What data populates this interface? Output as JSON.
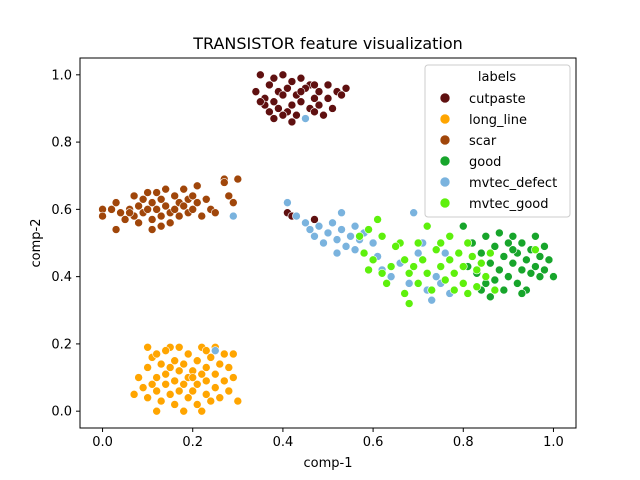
{
  "chart_data": {
    "type": "scatter",
    "title": "TRANSISTOR feature visualization",
    "xlabel": "comp-1",
    "ylabel": "comp-2",
    "xlim": [
      -0.05,
      1.05
    ],
    "ylim": [
      -0.05,
      1.05
    ],
    "xticks": [
      "0.0",
      "0.2",
      "0.4",
      "0.6",
      "0.8",
      "1.0"
    ],
    "yticks": [
      "0.0",
      "0.2",
      "0.4",
      "0.6",
      "0.8",
      "1.0"
    ],
    "grid": false,
    "legend": {
      "title": "labels",
      "placement": "top-right"
    },
    "series": [
      {
        "name": "cutpaste",
        "color": "#5f1010",
        "points": [
          [
            0.35,
            1.0
          ],
          [
            0.38,
            0.99
          ],
          [
            0.4,
            1.0
          ],
          [
            0.42,
            0.98
          ],
          [
            0.44,
            0.99
          ],
          [
            0.46,
            0.97
          ],
          [
            0.48,
            0.95
          ],
          [
            0.37,
            0.97
          ],
          [
            0.39,
            0.95
          ],
          [
            0.41,
            0.96
          ],
          [
            0.43,
            0.94
          ],
          [
            0.45,
            0.96
          ],
          [
            0.47,
            0.93
          ],
          [
            0.34,
            0.95
          ],
          [
            0.36,
            0.93
          ],
          [
            0.38,
            0.92
          ],
          [
            0.4,
            0.94
          ],
          [
            0.42,
            0.91
          ],
          [
            0.44,
            0.92
          ],
          [
            0.46,
            0.9
          ],
          [
            0.48,
            0.91
          ],
          [
            0.5,
            0.93
          ],
          [
            0.52,
            0.95
          ],
          [
            0.54,
            0.96
          ],
          [
            0.51,
            0.9
          ],
          [
            0.49,
            0.88
          ],
          [
            0.47,
            0.89
          ],
          [
            0.45,
            0.87
          ],
          [
            0.43,
            0.88
          ],
          [
            0.41,
            0.89
          ],
          [
            0.39,
            0.9
          ],
          [
            0.37,
            0.89
          ],
          [
            0.36,
            0.91
          ],
          [
            0.5,
            0.97
          ],
          [
            0.53,
            0.94
          ],
          [
            0.4,
            0.88
          ],
          [
            0.42,
            0.86
          ],
          [
            0.38,
            0.87
          ],
          [
            0.35,
            0.92
          ],
          [
            0.44,
            0.95
          ],
          [
            0.47,
            0.97
          ],
          [
            0.41,
            0.59
          ],
          [
            0.42,
            0.58
          ],
          [
            0.47,
            0.57
          ]
        ]
      },
      {
        "name": "long_line",
        "color": "#ffa500",
        "points": [
          [
            0.07,
            0.05
          ],
          [
            0.08,
            0.1
          ],
          [
            0.09,
            0.07
          ],
          [
            0.1,
            0.04
          ],
          [
            0.1,
            0.13
          ],
          [
            0.1,
            0.19
          ],
          [
            0.11,
            0.08
          ],
          [
            0.11,
            0.16
          ],
          [
            0.12,
            0.06
          ],
          [
            0.12,
            0.1
          ],
          [
            0.12,
            0.17
          ],
          [
            0.13,
            0.14
          ],
          [
            0.13,
            0.03
          ],
          [
            0.14,
            0.08
          ],
          [
            0.14,
            0.11
          ],
          [
            0.15,
            0.13
          ],
          [
            0.15,
            0.19
          ],
          [
            0.15,
            0.05
          ],
          [
            0.16,
            0.02
          ],
          [
            0.16,
            0.09
          ],
          [
            0.16,
            0.15
          ],
          [
            0.17,
            0.06
          ],
          [
            0.17,
            0.12
          ],
          [
            0.18,
            0.0
          ],
          [
            0.18,
            0.08
          ],
          [
            0.18,
            0.14
          ],
          [
            0.19,
            0.04
          ],
          [
            0.19,
            0.1
          ],
          [
            0.19,
            0.17
          ],
          [
            0.2,
            0.06
          ],
          [
            0.2,
            0.12
          ],
          [
            0.21,
            0.02
          ],
          [
            0.21,
            0.08
          ],
          [
            0.21,
            0.15
          ],
          [
            0.22,
            0.0
          ],
          [
            0.22,
            0.11
          ],
          [
            0.22,
            0.19
          ],
          [
            0.23,
            0.05
          ],
          [
            0.23,
            0.09
          ],
          [
            0.23,
            0.13
          ],
          [
            0.24,
            0.03
          ],
          [
            0.24,
            0.16
          ],
          [
            0.25,
            0.07
          ],
          [
            0.25,
            0.11
          ],
          [
            0.25,
            0.19
          ],
          [
            0.26,
            0.04
          ],
          [
            0.26,
            0.14
          ],
          [
            0.27,
            0.09
          ],
          [
            0.27,
            0.17
          ],
          [
            0.28,
            0.06
          ],
          [
            0.28,
            0.13
          ],
          [
            0.29,
            0.1
          ],
          [
            0.29,
            0.17
          ],
          [
            0.3,
            0.03
          ],
          [
            0.14,
            0.18
          ],
          [
            0.17,
            0.19
          ],
          [
            0.2,
            0.1
          ],
          [
            0.23,
            0.18
          ],
          [
            0.12,
            0.0
          ]
        ]
      },
      {
        "name": "scar",
        "color": "#a0460a",
        "points": [
          [
            0.0,
            0.6
          ],
          [
            0.0,
            0.58
          ],
          [
            0.02,
            0.6
          ],
          [
            0.03,
            0.62
          ],
          [
            0.03,
            0.54
          ],
          [
            0.04,
            0.59
          ],
          [
            0.05,
            0.57
          ],
          [
            0.06,
            0.6
          ],
          [
            0.07,
            0.64
          ],
          [
            0.07,
            0.58
          ],
          [
            0.08,
            0.61
          ],
          [
            0.08,
            0.56
          ],
          [
            0.09,
            0.63
          ],
          [
            0.09,
            0.59
          ],
          [
            0.1,
            0.65
          ],
          [
            0.1,
            0.6
          ],
          [
            0.11,
            0.62
          ],
          [
            0.11,
            0.57
          ],
          [
            0.11,
            0.54
          ],
          [
            0.12,
            0.65
          ],
          [
            0.12,
            0.6
          ],
          [
            0.13,
            0.63
          ],
          [
            0.13,
            0.58
          ],
          [
            0.14,
            0.66
          ],
          [
            0.14,
            0.61
          ],
          [
            0.15,
            0.59
          ],
          [
            0.15,
            0.56
          ],
          [
            0.16,
            0.64
          ],
          [
            0.16,
            0.6
          ],
          [
            0.17,
            0.62
          ],
          [
            0.17,
            0.58
          ],
          [
            0.18,
            0.66
          ],
          [
            0.18,
            0.61
          ],
          [
            0.19,
            0.63
          ],
          [
            0.19,
            0.59
          ],
          [
            0.2,
            0.64
          ],
          [
            0.2,
            0.6
          ],
          [
            0.21,
            0.67
          ],
          [
            0.21,
            0.62
          ],
          [
            0.22,
            0.58
          ],
          [
            0.23,
            0.63
          ],
          [
            0.24,
            0.6
          ],
          [
            0.25,
            0.59
          ],
          [
            0.27,
            0.69
          ],
          [
            0.27,
            0.68
          ],
          [
            0.28,
            0.64
          ],
          [
            0.29,
            0.62
          ],
          [
            0.3,
            0.69
          ],
          [
            0.13,
            0.55
          ],
          [
            0.06,
            0.59
          ]
        ]
      },
      {
        "name": "good",
        "color": "#17a52b",
        "points": [
          [
            0.8,
            0.55
          ],
          [
            0.82,
            0.5
          ],
          [
            0.84,
            0.47
          ],
          [
            0.85,
            0.52
          ],
          [
            0.86,
            0.44
          ],
          [
            0.87,
            0.49
          ],
          [
            0.88,
            0.42
          ],
          [
            0.88,
            0.53
          ],
          [
            0.89,
            0.46
          ],
          [
            0.9,
            0.5
          ],
          [
            0.9,
            0.4
          ],
          [
            0.91,
            0.44
          ],
          [
            0.91,
            0.52
          ],
          [
            0.92,
            0.47
          ],
          [
            0.92,
            0.38
          ],
          [
            0.93,
            0.42
          ],
          [
            0.93,
            0.5
          ],
          [
            0.94,
            0.45
          ],
          [
            0.94,
            0.36
          ],
          [
            0.95,
            0.41
          ],
          [
            0.95,
            0.48
          ],
          [
            0.96,
            0.43
          ],
          [
            0.96,
            0.52
          ],
          [
            0.97,
            0.4
          ],
          [
            0.97,
            0.46
          ],
          [
            0.98,
            0.42
          ],
          [
            0.99,
            0.45
          ],
          [
            1.0,
            0.4
          ],
          [
            0.85,
            0.38
          ],
          [
            0.86,
            0.34
          ],
          [
            0.83,
            0.41
          ],
          [
            0.84,
            0.36
          ],
          [
            0.79,
            0.47
          ],
          [
            0.81,
            0.43
          ],
          [
            0.89,
            0.36
          ],
          [
            0.87,
            0.39
          ],
          [
            0.98,
            0.49
          ],
          [
            0.93,
            0.35
          ],
          [
            0.91,
            0.48
          ]
        ]
      },
      {
        "name": "mvtec_defect",
        "color": "#7ab3de",
        "points": [
          [
            0.41,
            0.62
          ],
          [
            0.45,
            0.87
          ],
          [
            0.43,
            0.58
          ],
          [
            0.45,
            0.56
          ],
          [
            0.46,
            0.54
          ],
          [
            0.47,
            0.52
          ],
          [
            0.48,
            0.55
          ],
          [
            0.49,
            0.5
          ],
          [
            0.5,
            0.53
          ],
          [
            0.51,
            0.56
          ],
          [
            0.52,
            0.51
          ],
          [
            0.52,
            0.47
          ],
          [
            0.53,
            0.59
          ],
          [
            0.53,
            0.54
          ],
          [
            0.54,
            0.49
          ],
          [
            0.55,
            0.52
          ],
          [
            0.56,
            0.48
          ],
          [
            0.56,
            0.55
          ],
          [
            0.57,
            0.51
          ],
          [
            0.58,
            0.47
          ],
          [
            0.58,
            0.53
          ],
          [
            0.6,
            0.5
          ],
          [
            0.61,
            0.46
          ],
          [
            0.62,
            0.42
          ],
          [
            0.64,
            0.4
          ],
          [
            0.66,
            0.44
          ],
          [
            0.68,
            0.38
          ],
          [
            0.7,
            0.47
          ],
          [
            0.71,
            0.5
          ],
          [
            0.72,
            0.36
          ],
          [
            0.73,
            0.33
          ],
          [
            0.74,
            0.4
          ],
          [
            0.75,
            0.38
          ],
          [
            0.77,
            0.35
          ],
          [
            0.76,
            0.47
          ],
          [
            0.69,
            0.59
          ],
          [
            0.29,
            0.58
          ],
          [
            0.25,
            0.18
          ]
        ]
      },
      {
        "name": "mvtec_good",
        "color": "#5ef00c",
        "points": [
          [
            0.57,
            0.52
          ],
          [
            0.58,
            0.47
          ],
          [
            0.59,
            0.42
          ],
          [
            0.6,
            0.45
          ],
          [
            0.61,
            0.57
          ],
          [
            0.62,
            0.52
          ],
          [
            0.62,
            0.41
          ],
          [
            0.63,
            0.38
          ],
          [
            0.66,
            0.5
          ],
          [
            0.67,
            0.45
          ],
          [
            0.67,
            0.35
          ],
          [
            0.68,
            0.32
          ],
          [
            0.68,
            0.41
          ],
          [
            0.69,
            0.43
          ],
          [
            0.7,
            0.38
          ],
          [
            0.7,
            0.5
          ],
          [
            0.71,
            0.45
          ],
          [
            0.72,
            0.41
          ],
          [
            0.72,
            0.55
          ],
          [
            0.73,
            0.36
          ],
          [
            0.74,
            0.48
          ],
          [
            0.75,
            0.43
          ],
          [
            0.75,
            0.5
          ],
          [
            0.76,
            0.39
          ],
          [
            0.77,
            0.45
          ],
          [
            0.77,
            0.52
          ],
          [
            0.78,
            0.41
          ],
          [
            0.78,
            0.36
          ],
          [
            0.79,
            0.47
          ],
          [
            0.8,
            0.43
          ],
          [
            0.8,
            0.38
          ],
          [
            0.81,
            0.5
          ],
          [
            0.81,
            0.35
          ],
          [
            0.82,
            0.46
          ],
          [
            0.83,
            0.42
          ],
          [
            0.83,
            0.37
          ],
          [
            0.84,
            0.44
          ],
          [
            0.85,
            0.4
          ],
          [
            0.86,
            0.47
          ],
          [
            0.87,
            0.36
          ],
          [
            0.96,
            0.48
          ],
          [
            0.65,
            0.49
          ],
          [
            0.59,
            0.54
          ],
          [
            0.64,
            0.43
          ]
        ]
      }
    ]
  }
}
